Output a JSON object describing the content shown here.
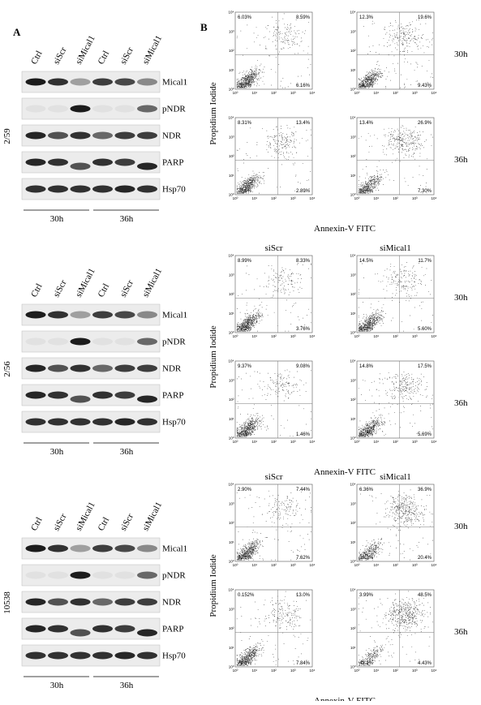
{
  "panels": {
    "a": "A",
    "b": "B"
  },
  "axis_ticks": [
    "10⁰",
    "10¹",
    "10²",
    "10³",
    "10⁴"
  ],
  "rows": [
    {
      "cell_line": "2/59",
      "lanes": [
        "Ctrl",
        "siScr",
        "siMical1",
        "Ctrl",
        "siScr",
        "siMical1"
      ],
      "blots": [
        "Mical1",
        "pNDR",
        "NDR",
        "PARP",
        "Hsp70"
      ],
      "times": [
        "30h",
        "36h"
      ],
      "flow": {
        "times": [
          "30h",
          "36h"
        ],
        "y_label": "Propidium Iodide",
        "x_label": "Annexin-V FITC",
        "plots": [
          [
            {
              "ul": "6.03%",
              "ur": "8.59%",
              "ll": "79.2%",
              "lr": "6.16%"
            },
            {
              "ul": "12.3%",
              "ur": "19.6%",
              "ll": "58.6%",
              "lr": "9.43%"
            }
          ],
          [
            {
              "ul": "8.31%",
              "ur": "13.4%",
              "ll": "75.4%",
              "lr": "2.89%"
            },
            {
              "ul": "13.4%",
              "ur": "26.9%",
              "ll": "52.5%",
              "lr": "7.30%"
            }
          ]
        ]
      }
    },
    {
      "cell_line": "2/56",
      "lanes": [
        "Ctrl",
        "siScr",
        "siMical1",
        "Ctrl",
        "siScr",
        "siMical1"
      ],
      "blots": [
        "Mical1",
        "pNDR",
        "NDR",
        "PARP",
        "Hsp70"
      ],
      "times": [
        "30h",
        "36h"
      ],
      "flow": {
        "columns": [
          "siScr",
          "siMical1"
        ],
        "times": [
          "30h",
          "36h"
        ],
        "y_label": "Propidium Iodide",
        "x_label": "Annexin-V FITC",
        "plots": [
          [
            {
              "ul": "8.99%",
              "ur": "8.33%",
              "ll": "78.9%",
              "lr": "3.76%"
            },
            {
              "ul": "14.5%",
              "ur": "11.7%",
              "ll": "68.2%",
              "lr": "5.60%"
            }
          ],
          [
            {
              "ul": "9.37%",
              "ur": "9.08%",
              "ll": "80.1%",
              "lr": "1.46%"
            },
            {
              "ul": "14.8%",
              "ur": "17.5%",
              "ll": "62.0%",
              "lr": "5.69%"
            }
          ]
        ]
      }
    },
    {
      "cell_line": "10538",
      "lanes": [
        "Ctrl",
        "siScr",
        "siMical1",
        "Ctrl",
        "siScr",
        "siMical1"
      ],
      "blots": [
        "Mical1",
        "pNDR",
        "NDR",
        "PARP",
        "Hsp70"
      ],
      "times": [
        "30h",
        "36h"
      ],
      "flow": {
        "columns": [
          "siScr",
          "siMical1"
        ],
        "times": [
          "30h",
          "36h"
        ],
        "y_label": "Propidium Iodide",
        "x_label": "Annexin-V FITC",
        "plots": [
          [
            {
              "ul": "2.90%",
              "ur": "7.44%",
              "ll": "82.0%",
              "lr": "7.62%"
            },
            {
              "ul": "6.36%",
              "ur": "36.9%",
              "ll": "36.3%",
              "lr": "20.4%"
            }
          ],
          [
            {
              "ul": "0.152%",
              "ur": "13.0%",
              "ll": "79.1%",
              "lr": "7.84%"
            },
            {
              "ul": "3.99%",
              "ur": "48.5%",
              "ll": "43.1%",
              "lr": "4.43%"
            }
          ]
        ]
      }
    }
  ]
}
